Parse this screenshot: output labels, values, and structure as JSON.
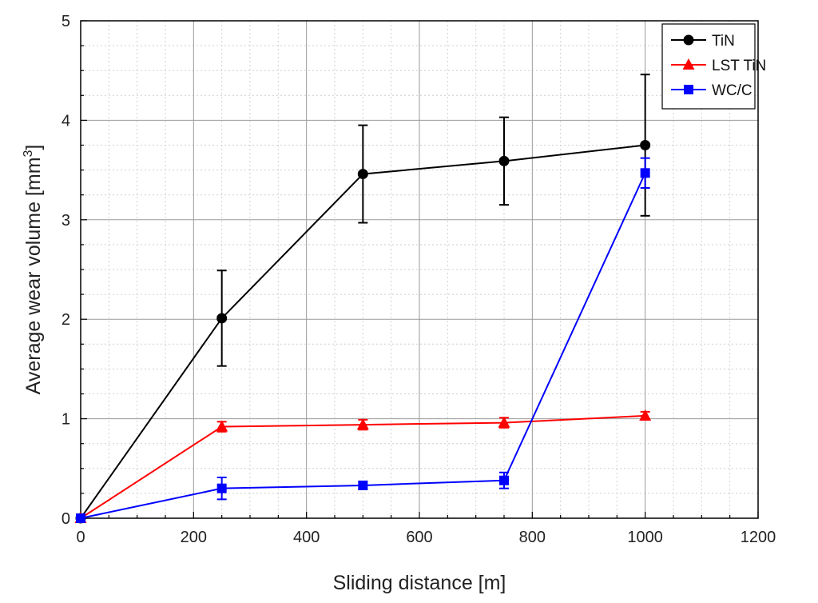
{
  "chart_data": {
    "type": "line",
    "title": "",
    "xlabel": "Sliding distance [m]",
    "ylabel_main": "Average wear volume [mm",
    "ylabel_sup": "3",
    "ylabel_close": "]",
    "xlim": [
      0,
      1200
    ],
    "ylim": [
      0,
      5
    ],
    "x_ticks": [
      0,
      200,
      400,
      600,
      800,
      1000,
      1200
    ],
    "y_ticks": [
      0,
      1,
      2,
      3,
      4,
      5
    ],
    "x_minor_step": 50,
    "y_minor_step": 0.25,
    "grid": true,
    "legend_position": "top-right",
    "series": [
      {
        "name": "TiN",
        "color": "#000000",
        "marker": "circle",
        "x": [
          0,
          250,
          500,
          750,
          1000
        ],
        "y": [
          0,
          2.01,
          3.46,
          3.59,
          3.75
        ],
        "err": [
          0,
          0.48,
          0.49,
          0.44,
          0.71
        ]
      },
      {
        "name": "LST TiN",
        "color": "#ff0000",
        "marker": "triangle",
        "x": [
          0,
          250,
          500,
          750,
          1000
        ],
        "y": [
          0,
          0.92,
          0.94,
          0.96,
          1.03
        ],
        "err": [
          0,
          0.05,
          0.05,
          0.05,
          0.04
        ]
      },
      {
        "name": "WC/C",
        "color": "#0000ff",
        "marker": "square",
        "x": [
          0,
          250,
          500,
          750,
          1000
        ],
        "y": [
          0,
          0.3,
          0.33,
          0.38,
          3.47
        ],
        "err": [
          0,
          0.11,
          0.04,
          0.08,
          0.15
        ]
      }
    ]
  }
}
